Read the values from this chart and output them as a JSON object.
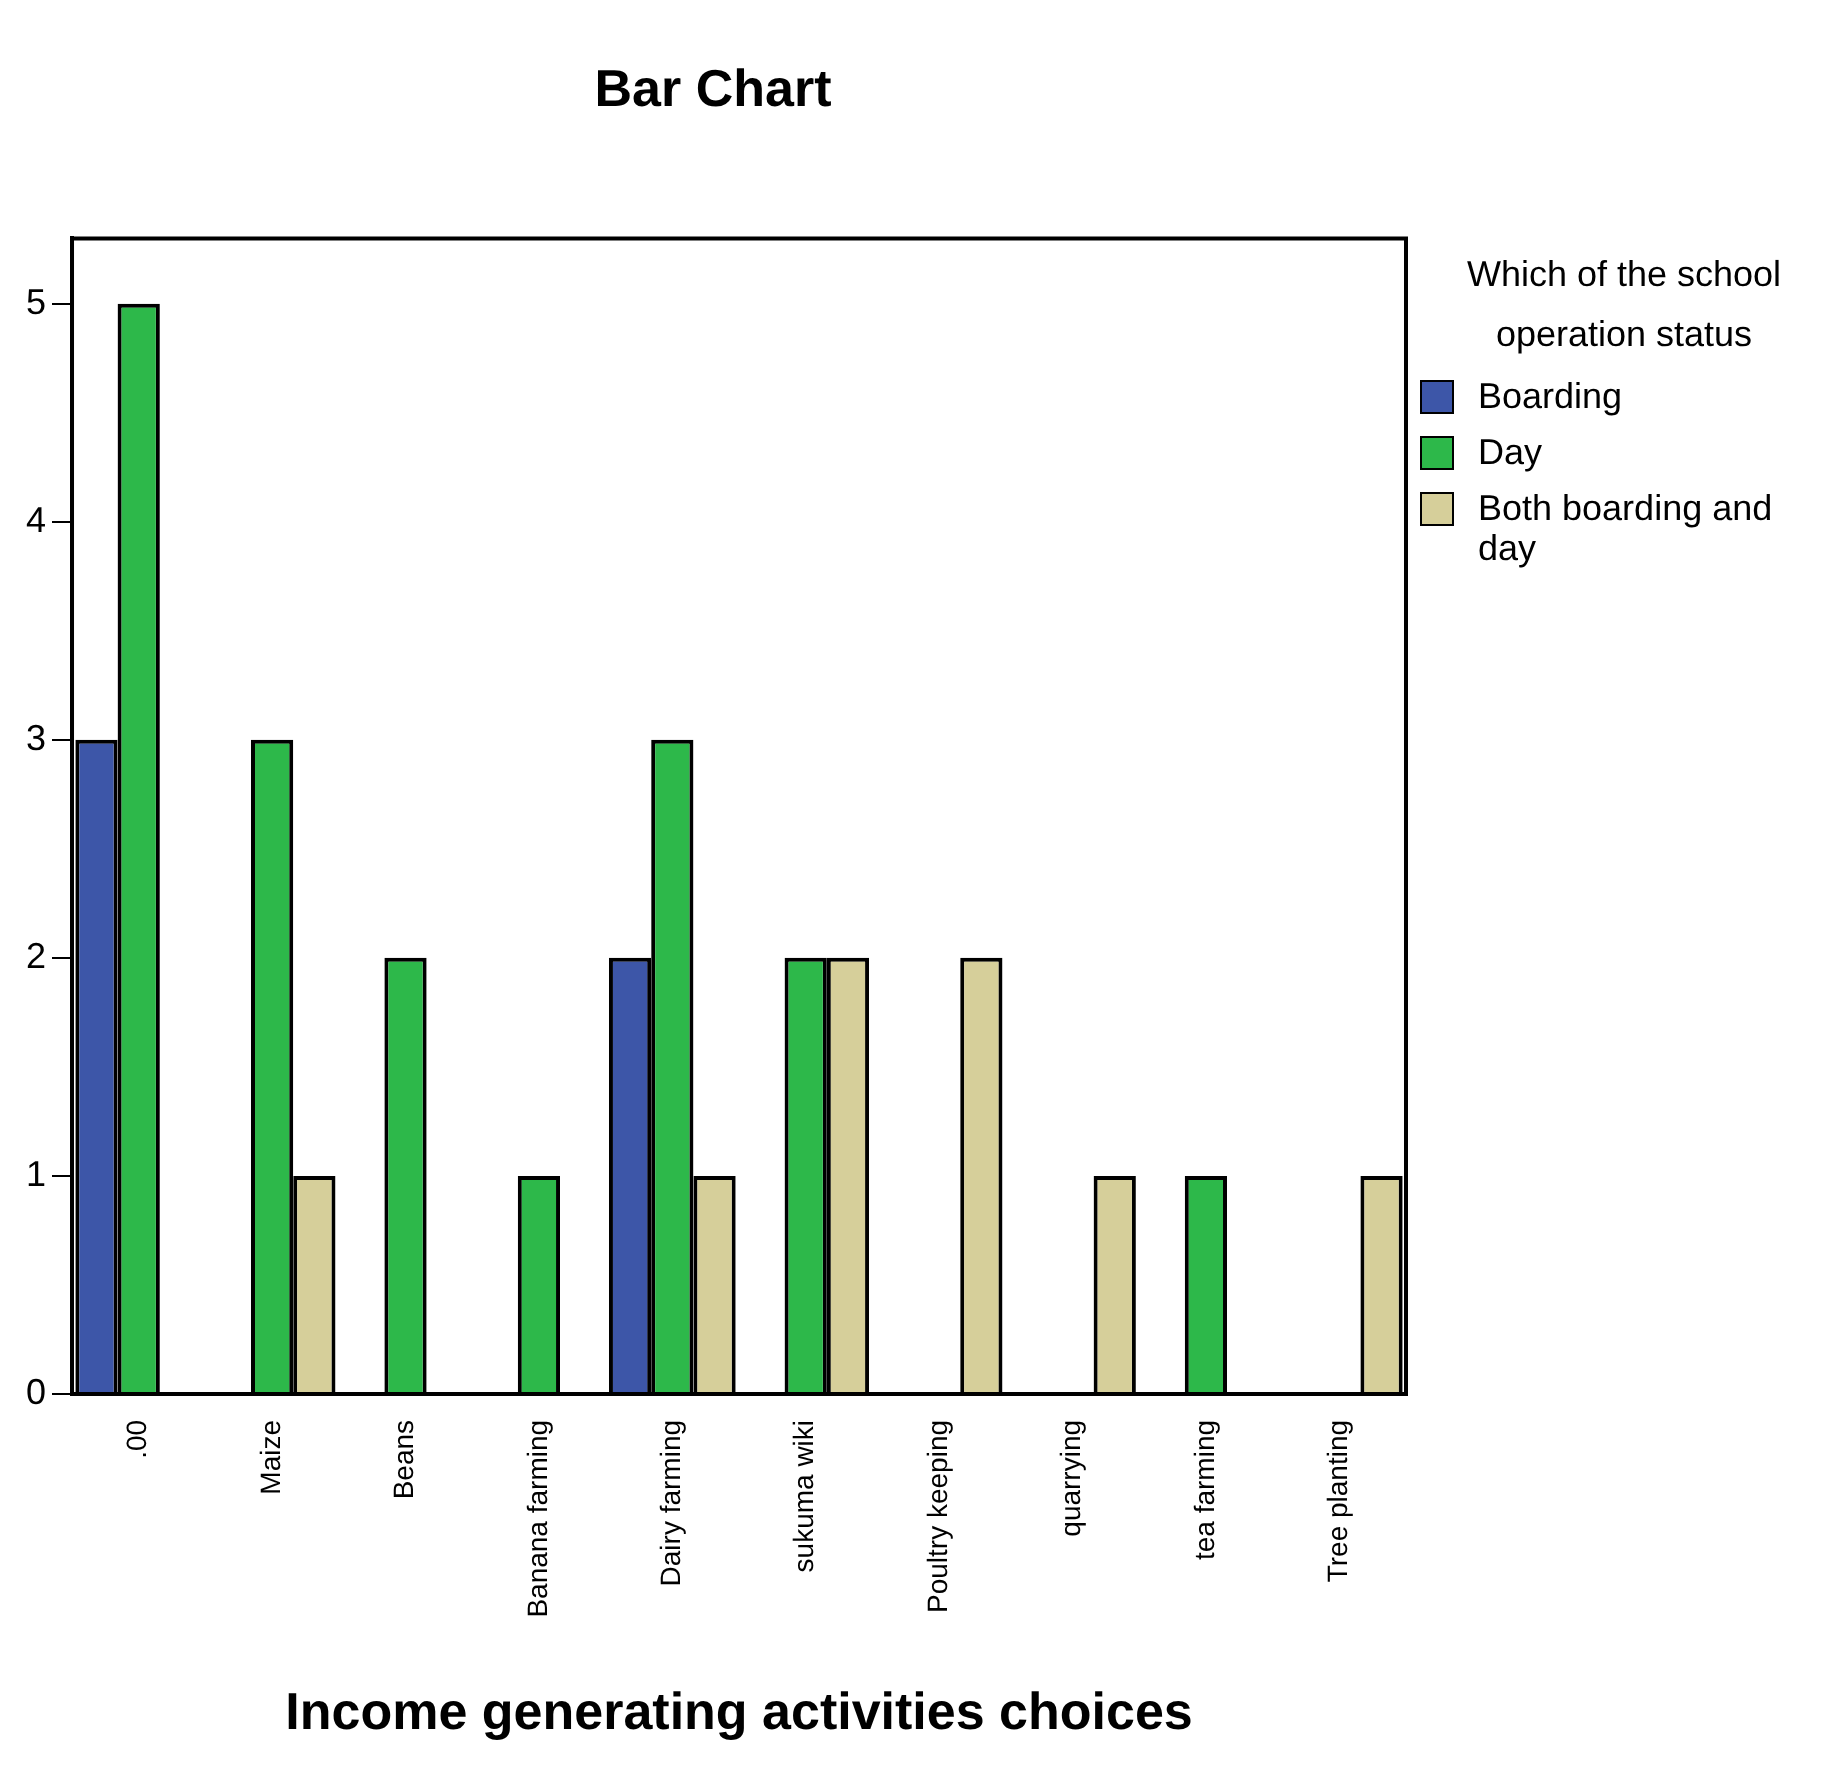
{
  "chart_data": {
    "type": "bar",
    "title": "Bar Chart",
    "xlabel": "Income generating activities choices",
    "legend_title": "Which of the school operation status",
    "categories": [
      ".00",
      "Maize",
      "Beans",
      "Banana farming",
      "Dairy farming",
      "sukuma wiki",
      "Poultry keeping",
      "quarrying",
      "tea farming",
      "Tree planting"
    ],
    "series": [
      {
        "name": "Boarding",
        "color": "#3d56a8",
        "values": [
          3,
          null,
          null,
          null,
          2,
          null,
          null,
          null,
          null,
          null
        ]
      },
      {
        "name": "Day",
        "color": "#2db84a",
        "values": [
          5,
          3,
          2,
          1,
          3,
          2,
          null,
          null,
          1,
          null
        ]
      },
      {
        "name": "Both boarding and day",
        "color": "#d6cf9a",
        "values": [
          null,
          1,
          null,
          null,
          1,
          2,
          2,
          1,
          null,
          1
        ]
      }
    ],
    "ylim": [
      0,
      5.3
    ],
    "yticks": [
      0,
      1,
      2,
      3,
      4,
      5
    ],
    "grid": false,
    "legend": "right"
  }
}
